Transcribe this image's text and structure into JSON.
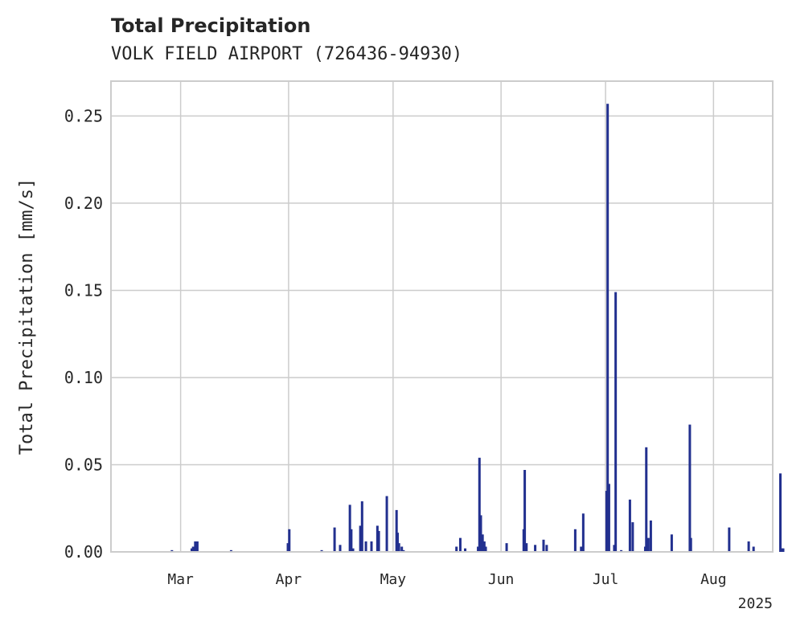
{
  "chart_data": {
    "type": "bar",
    "title": "Total Precipitation",
    "subtitle": "VOLK FIELD AIRPORT (726436-94930)",
    "ylabel": "Total Precipitation [mm/s]",
    "xlabel": "",
    "year_label": "2025",
    "ylim": [
      0,
      0.27
    ],
    "xlim_days": [
      -20,
      170
    ],
    "y_ticks": [
      {
        "value": 0.0,
        "label": "0.00"
      },
      {
        "value": 0.05,
        "label": "0.05"
      },
      {
        "value": 0.1,
        "label": "0.10"
      },
      {
        "value": 0.15,
        "label": "0.15"
      },
      {
        "value": 0.2,
        "label": "0.20"
      },
      {
        "value": 0.25,
        "label": "0.25"
      }
    ],
    "x_ticks": [
      {
        "day": 0,
        "label": "Mar"
      },
      {
        "day": 31,
        "label": "Apr"
      },
      {
        "day": 61,
        "label": "May"
      },
      {
        "day": 92,
        "label": "Jun"
      },
      {
        "day": 122,
        "label": "Jul"
      },
      {
        "day": 153,
        "label": "Aug"
      }
    ],
    "grid": true,
    "series": [
      {
        "name": "Total Precipitation",
        "color": "#22308f",
        "points": [
          [
            -2.5,
            0.001
          ],
          [
            3.2,
            0.002
          ],
          [
            3.6,
            0.003
          ],
          [
            4.2,
            0.006
          ],
          [
            4.8,
            0.006
          ],
          [
            14.5,
            0.001
          ],
          [
            30.8,
            0.005
          ],
          [
            31.2,
            0.013
          ],
          [
            40.5,
            0.001
          ],
          [
            44.2,
            0.014
          ],
          [
            45.8,
            0.004
          ],
          [
            48.6,
            0.027
          ],
          [
            49.0,
            0.013
          ],
          [
            49.5,
            0.002
          ],
          [
            51.6,
            0.015
          ],
          [
            52.1,
            0.029
          ],
          [
            53.2,
            0.006
          ],
          [
            54.8,
            0.006
          ],
          [
            56.5,
            0.015
          ],
          [
            56.9,
            0.012
          ],
          [
            59.2,
            0.032
          ],
          [
            62.0,
            0.024
          ],
          [
            62.3,
            0.011
          ],
          [
            62.7,
            0.005
          ],
          [
            63.5,
            0.003
          ],
          [
            64.0,
            0.001
          ],
          [
            79.2,
            0.003
          ],
          [
            80.3,
            0.008
          ],
          [
            81.7,
            0.002
          ],
          [
            85.4,
            0.003
          ],
          [
            85.8,
            0.054
          ],
          [
            86.2,
            0.021
          ],
          [
            86.7,
            0.01
          ],
          [
            87.2,
            0.006
          ],
          [
            87.6,
            0.003
          ],
          [
            93.6,
            0.005
          ],
          [
            98.5,
            0.013
          ],
          [
            98.8,
            0.047
          ],
          [
            99.3,
            0.005
          ],
          [
            101.8,
            0.004
          ],
          [
            104.2,
            0.007
          ],
          [
            105.1,
            0.004
          ],
          [
            113.3,
            0.013
          ],
          [
            115.0,
            0.003
          ],
          [
            115.6,
            0.022
          ],
          [
            122.3,
            0.035
          ],
          [
            122.6,
            0.257
          ],
          [
            123.0,
            0.039
          ],
          [
            124.5,
            0.004
          ],
          [
            124.9,
            0.149
          ],
          [
            126.5,
            0.001
          ],
          [
            129.0,
            0.03
          ],
          [
            129.8,
            0.017
          ],
          [
            133.4,
            0.003
          ],
          [
            133.7,
            0.06
          ],
          [
            134.3,
            0.008
          ],
          [
            135.0,
            0.018
          ],
          [
            141.0,
            0.01
          ],
          [
            146.2,
            0.073
          ],
          [
            146.5,
            0.008
          ],
          [
            157.5,
            0.014
          ],
          [
            163.1,
            0.006
          ],
          [
            164.5,
            0.003
          ],
          [
            172.2,
            0.045
          ],
          [
            172.7,
            0.002
          ],
          [
            173.0,
            0.002
          ]
        ]
      }
    ]
  }
}
